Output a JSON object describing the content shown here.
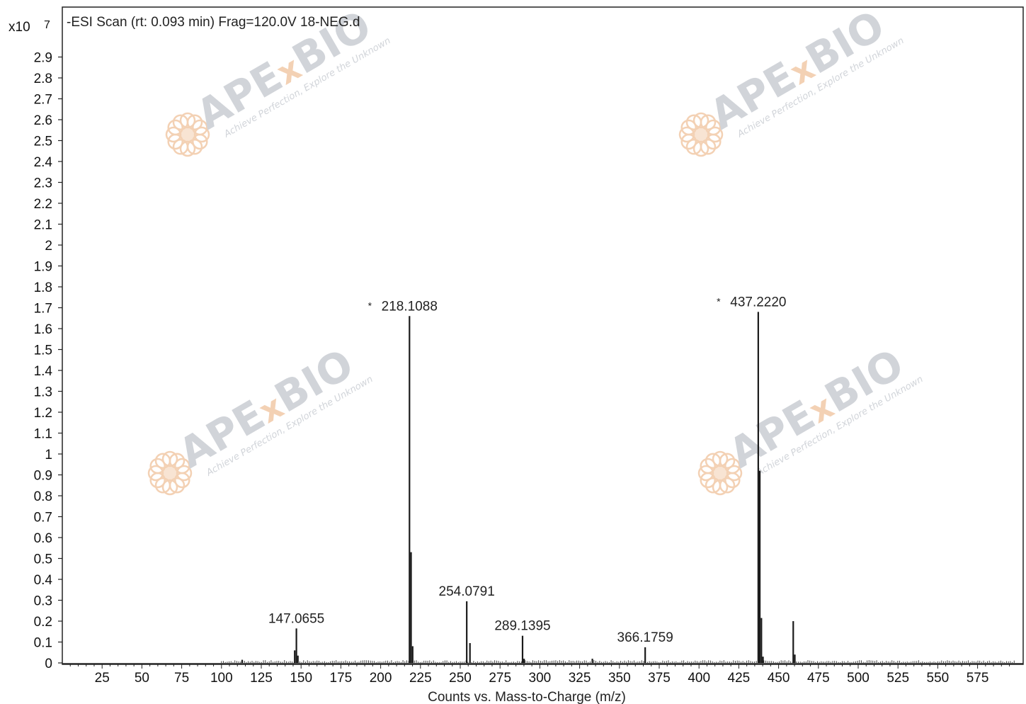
{
  "chart_data": {
    "type": "bar",
    "title": "-ESI Scan (rt: 0.093 min) Frag=120.0V 18-NEG.d",
    "xlabel": "Counts vs. Mass-to-Charge (m/z)",
    "ylabel": "",
    "y_multiplier": "x10",
    "y_exponent": "7",
    "xlim": [
      0,
      600
    ],
    "ylim": [
      0,
      3.0
    ],
    "x_ticks": [
      25,
      50,
      75,
      100,
      125,
      150,
      175,
      200,
      225,
      250,
      275,
      300,
      325,
      350,
      375,
      400,
      425,
      450,
      475,
      500,
      525,
      550,
      575
    ],
    "y_ticks": [
      0,
      0.1,
      0.2,
      0.3,
      0.4,
      0.5,
      0.6,
      0.7,
      0.8,
      0.9,
      1,
      1.1,
      1.2,
      1.3,
      1.4,
      1.5,
      1.6,
      1.7,
      1.8,
      1.9,
      2,
      2.1,
      2.2,
      2.3,
      2.4,
      2.5,
      2.6,
      2.7,
      2.8,
      2.9
    ],
    "grid": false,
    "peaks": [
      {
        "x": 113.0,
        "y": 0.015
      },
      {
        "x": 146.0,
        "y": 0.06
      },
      {
        "x": 147.0655,
        "y": 0.165
      },
      {
        "x": 148.0,
        "y": 0.035
      },
      {
        "x": 218.1088,
        "y": 1.66
      },
      {
        "x": 219.1,
        "y": 0.53
      },
      {
        "x": 220.1,
        "y": 0.08
      },
      {
        "x": 254.0791,
        "y": 0.295
      },
      {
        "x": 256.1,
        "y": 0.095
      },
      {
        "x": 289.1395,
        "y": 0.13
      },
      {
        "x": 290.1,
        "y": 0.02
      },
      {
        "x": 333.0,
        "y": 0.02
      },
      {
        "x": 366.1759,
        "y": 0.075
      },
      {
        "x": 437.222,
        "y": 1.68
      },
      {
        "x": 438.2,
        "y": 0.92
      },
      {
        "x": 439.2,
        "y": 0.215
      },
      {
        "x": 440.2,
        "y": 0.03
      },
      {
        "x": 459.2,
        "y": 0.2
      },
      {
        "x": 460.2,
        "y": 0.04
      }
    ],
    "labels": [
      {
        "x": 147.0655,
        "y": 0.165,
        "text": "147.0655",
        "marked": false
      },
      {
        "x": 218.1088,
        "y": 1.66,
        "text": "218.1088",
        "marked": true
      },
      {
        "x": 254.0791,
        "y": 0.295,
        "text": "254.0791",
        "marked": false
      },
      {
        "x": 289.1395,
        "y": 0.13,
        "text": "289.1395",
        "marked": false
      },
      {
        "x": 366.1759,
        "y": 0.075,
        "text": "366.1759",
        "marked": false
      },
      {
        "x": 437.222,
        "y": 1.68,
        "text": "437.2220",
        "marked": true
      }
    ],
    "colors": {
      "peak": "#1a1a1a",
      "axis": "#222222",
      "watermark_text": "#c9cdd3",
      "watermark_accent": "#f2c9a8"
    }
  },
  "watermark": {
    "brand_prefix": "APE",
    "brand_x": "x",
    "brand_suffix": "BIO",
    "tagline": "Achieve Perfection, Explore the Unknown",
    "icon": "flower-logo-icon"
  }
}
